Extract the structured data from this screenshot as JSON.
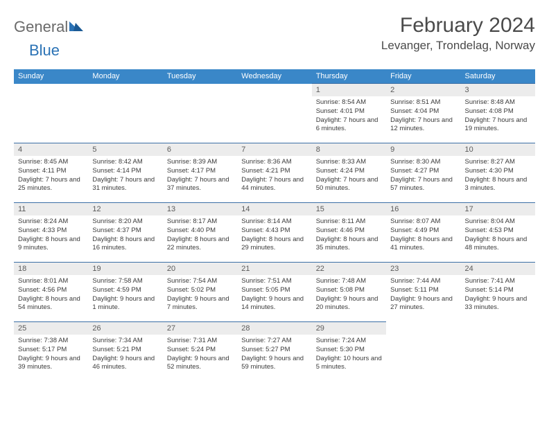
{
  "logo": {
    "word1": "General",
    "word2": "Blue"
  },
  "title": "February 2024",
  "location": "Levanger, Trondelag, Norway",
  "colors": {
    "header_bg": "#3a87c8",
    "header_text": "#ffffff",
    "daynum_bg": "#ececec",
    "daynum_text": "#5a5a5a",
    "body_text": "#3a3a3a",
    "rule": "#3a6ea5",
    "logo_gray": "#6a6a6a",
    "logo_blue": "#2a72b5"
  },
  "day_headers": [
    "Sunday",
    "Monday",
    "Tuesday",
    "Wednesday",
    "Thursday",
    "Friday",
    "Saturday"
  ],
  "weeks": [
    [
      {
        "n": "",
        "sun": "",
        "set": "",
        "day": ""
      },
      {
        "n": "",
        "sun": "",
        "set": "",
        "day": ""
      },
      {
        "n": "",
        "sun": "",
        "set": "",
        "day": ""
      },
      {
        "n": "",
        "sun": "",
        "set": "",
        "day": ""
      },
      {
        "n": "1",
        "sun": "Sunrise: 8:54 AM",
        "set": "Sunset: 4:01 PM",
        "day": "Daylight: 7 hours and 6 minutes."
      },
      {
        "n": "2",
        "sun": "Sunrise: 8:51 AM",
        "set": "Sunset: 4:04 PM",
        "day": "Daylight: 7 hours and 12 minutes."
      },
      {
        "n": "3",
        "sun": "Sunrise: 8:48 AM",
        "set": "Sunset: 4:08 PM",
        "day": "Daylight: 7 hours and 19 minutes."
      }
    ],
    [
      {
        "n": "4",
        "sun": "Sunrise: 8:45 AM",
        "set": "Sunset: 4:11 PM",
        "day": "Daylight: 7 hours and 25 minutes."
      },
      {
        "n": "5",
        "sun": "Sunrise: 8:42 AM",
        "set": "Sunset: 4:14 PM",
        "day": "Daylight: 7 hours and 31 minutes."
      },
      {
        "n": "6",
        "sun": "Sunrise: 8:39 AM",
        "set": "Sunset: 4:17 PM",
        "day": "Daylight: 7 hours and 37 minutes."
      },
      {
        "n": "7",
        "sun": "Sunrise: 8:36 AM",
        "set": "Sunset: 4:21 PM",
        "day": "Daylight: 7 hours and 44 minutes."
      },
      {
        "n": "8",
        "sun": "Sunrise: 8:33 AM",
        "set": "Sunset: 4:24 PM",
        "day": "Daylight: 7 hours and 50 minutes."
      },
      {
        "n": "9",
        "sun": "Sunrise: 8:30 AM",
        "set": "Sunset: 4:27 PM",
        "day": "Daylight: 7 hours and 57 minutes."
      },
      {
        "n": "10",
        "sun": "Sunrise: 8:27 AM",
        "set": "Sunset: 4:30 PM",
        "day": "Daylight: 8 hours and 3 minutes."
      }
    ],
    [
      {
        "n": "11",
        "sun": "Sunrise: 8:24 AM",
        "set": "Sunset: 4:33 PM",
        "day": "Daylight: 8 hours and 9 minutes."
      },
      {
        "n": "12",
        "sun": "Sunrise: 8:20 AM",
        "set": "Sunset: 4:37 PM",
        "day": "Daylight: 8 hours and 16 minutes."
      },
      {
        "n": "13",
        "sun": "Sunrise: 8:17 AM",
        "set": "Sunset: 4:40 PM",
        "day": "Daylight: 8 hours and 22 minutes."
      },
      {
        "n": "14",
        "sun": "Sunrise: 8:14 AM",
        "set": "Sunset: 4:43 PM",
        "day": "Daylight: 8 hours and 29 minutes."
      },
      {
        "n": "15",
        "sun": "Sunrise: 8:11 AM",
        "set": "Sunset: 4:46 PM",
        "day": "Daylight: 8 hours and 35 minutes."
      },
      {
        "n": "16",
        "sun": "Sunrise: 8:07 AM",
        "set": "Sunset: 4:49 PM",
        "day": "Daylight: 8 hours and 41 minutes."
      },
      {
        "n": "17",
        "sun": "Sunrise: 8:04 AM",
        "set": "Sunset: 4:53 PM",
        "day": "Daylight: 8 hours and 48 minutes."
      }
    ],
    [
      {
        "n": "18",
        "sun": "Sunrise: 8:01 AM",
        "set": "Sunset: 4:56 PM",
        "day": "Daylight: 8 hours and 54 minutes."
      },
      {
        "n": "19",
        "sun": "Sunrise: 7:58 AM",
        "set": "Sunset: 4:59 PM",
        "day": "Daylight: 9 hours and 1 minute."
      },
      {
        "n": "20",
        "sun": "Sunrise: 7:54 AM",
        "set": "Sunset: 5:02 PM",
        "day": "Daylight: 9 hours and 7 minutes."
      },
      {
        "n": "21",
        "sun": "Sunrise: 7:51 AM",
        "set": "Sunset: 5:05 PM",
        "day": "Daylight: 9 hours and 14 minutes."
      },
      {
        "n": "22",
        "sun": "Sunrise: 7:48 AM",
        "set": "Sunset: 5:08 PM",
        "day": "Daylight: 9 hours and 20 minutes."
      },
      {
        "n": "23",
        "sun": "Sunrise: 7:44 AM",
        "set": "Sunset: 5:11 PM",
        "day": "Daylight: 9 hours and 27 minutes."
      },
      {
        "n": "24",
        "sun": "Sunrise: 7:41 AM",
        "set": "Sunset: 5:14 PM",
        "day": "Daylight: 9 hours and 33 minutes."
      }
    ],
    [
      {
        "n": "25",
        "sun": "Sunrise: 7:38 AM",
        "set": "Sunset: 5:17 PM",
        "day": "Daylight: 9 hours and 39 minutes."
      },
      {
        "n": "26",
        "sun": "Sunrise: 7:34 AM",
        "set": "Sunset: 5:21 PM",
        "day": "Daylight: 9 hours and 46 minutes."
      },
      {
        "n": "27",
        "sun": "Sunrise: 7:31 AM",
        "set": "Sunset: 5:24 PM",
        "day": "Daylight: 9 hours and 52 minutes."
      },
      {
        "n": "28",
        "sun": "Sunrise: 7:27 AM",
        "set": "Sunset: 5:27 PM",
        "day": "Daylight: 9 hours and 59 minutes."
      },
      {
        "n": "29",
        "sun": "Sunrise: 7:24 AM",
        "set": "Sunset: 5:30 PM",
        "day": "Daylight: 10 hours and 5 minutes."
      },
      {
        "n": "",
        "sun": "",
        "set": "",
        "day": ""
      },
      {
        "n": "",
        "sun": "",
        "set": "",
        "day": ""
      }
    ]
  ]
}
